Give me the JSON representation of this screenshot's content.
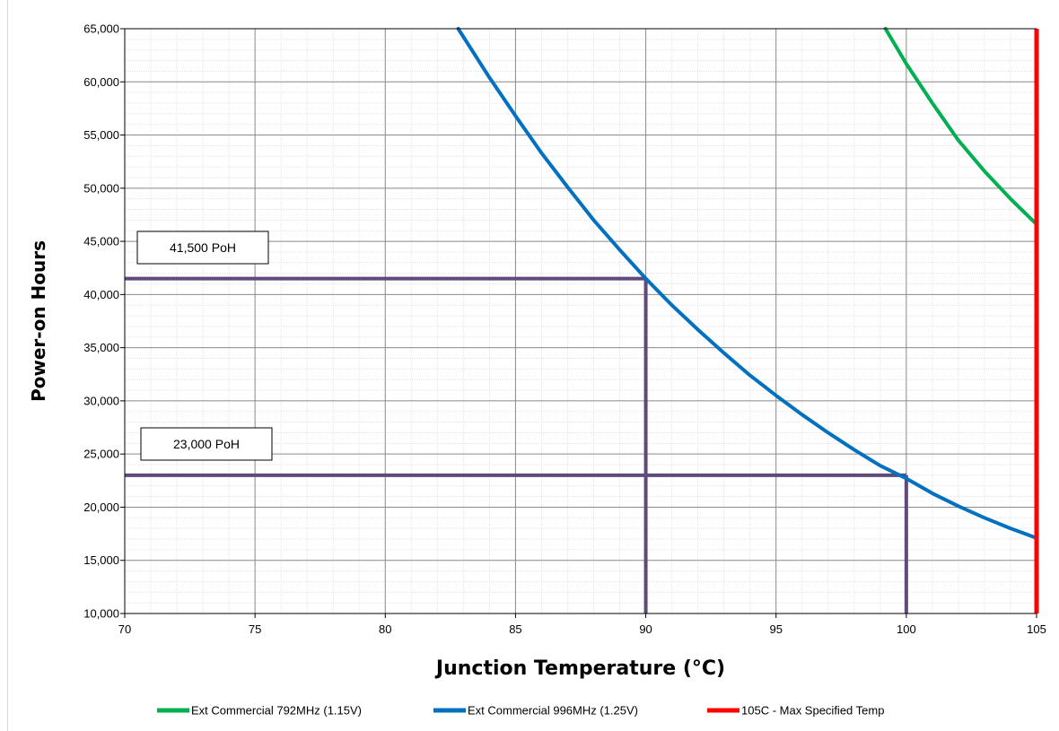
{
  "chart_data": {
    "type": "line",
    "title": "",
    "xlabel": "Junction Temperature (°C)",
    "ylabel": "Power-on Hours",
    "xlim": [
      70,
      105
    ],
    "ylim": [
      10000,
      65000
    ],
    "x_ticks": [
      70,
      75,
      80,
      85,
      90,
      95,
      100,
      105
    ],
    "y_ticks": [
      10000,
      15000,
      20000,
      25000,
      30000,
      35000,
      40000,
      45000,
      50000,
      55000,
      60000,
      65000
    ],
    "x_tick_labels": [
      "70",
      "75",
      "80",
      "85",
      "90",
      "95",
      "100",
      "105"
    ],
    "y_tick_labels": [
      "10,000",
      "15,000",
      "20,000",
      "25,000",
      "30,000",
      "35,000",
      "40,000",
      "45,000",
      "50,000",
      "55,000",
      "60,000",
      "65,000"
    ],
    "grid": true,
    "legend_position": "bottom",
    "series": [
      {
        "name": "Ext Commercial 792MHz (1.15V)",
        "color": "#00b050",
        "x": [
          99.2,
          100,
          101,
          102,
          103,
          104,
          105
        ],
        "y": [
          65000,
          61700,
          58000,
          54500,
          51600,
          49000,
          46600
        ]
      },
      {
        "name": "Ext Commercial 996MHz (1.25V)",
        "color": "#0070c0",
        "x": [
          82.8,
          84,
          85,
          86,
          87,
          88,
          89,
          90,
          91,
          92,
          93,
          94,
          95,
          96,
          97,
          98,
          99,
          100,
          101,
          102,
          103,
          104,
          105
        ],
        "y": [
          65000,
          60400,
          56800,
          53300,
          50100,
          47000,
          44200,
          41500,
          39000,
          36700,
          34500,
          32400,
          30500,
          28700,
          27000,
          25400,
          23900,
          22700,
          21300,
          20100,
          19000,
          18000,
          17100
        ]
      },
      {
        "name": "105C - Max Specified Temp",
        "color": "#ff0000",
        "x": [
          105,
          105
        ],
        "y": [
          10000,
          65000
        ]
      }
    ],
    "annotations": [
      {
        "label": "41,500 PoH",
        "x_value": 90,
        "y_value": 41500,
        "color": "#604a7b"
      },
      {
        "label": "23,000 PoH",
        "x_value": 100,
        "y_value": 23000,
        "color": "#604a7b"
      }
    ]
  }
}
